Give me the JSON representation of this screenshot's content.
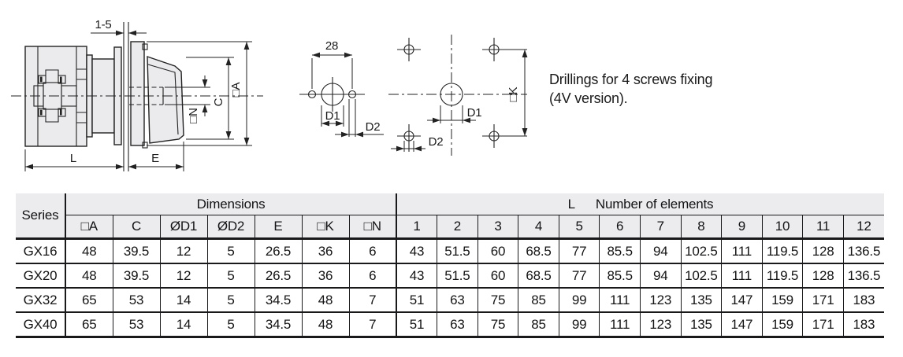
{
  "drawing": {
    "side_view": {
      "dim_clamp": "1-5",
      "dim_body_length": "L",
      "dim_front_length": "E",
      "dim_shaft_square": "□N",
      "dim_handle_height": "C",
      "dim_plate_square": "□A"
    },
    "two_hole_view": {
      "dim_spacing": "28",
      "dim_center_hole": "D1",
      "dim_fix_hole": "D2"
    },
    "four_hole_view": {
      "dim_center_hole": "D1",
      "dim_fix_hole": "D2",
      "dim_square": "□K"
    },
    "note": {
      "line1": "Drillings for 4 screws fixing",
      "line2": "(4V version)."
    }
  },
  "table": {
    "series_header": "Series",
    "dimensions_header": "Dimensions",
    "elements_header_l": "L",
    "elements_header_text": "Number of elements",
    "dim_columns": [
      "□A",
      "C",
      "ØD1",
      "ØD2",
      "E",
      "□K",
      "□N"
    ],
    "element_columns": [
      "1",
      "2",
      "3",
      "4",
      "5",
      "6",
      "7",
      "8",
      "9",
      "10",
      "11",
      "12"
    ],
    "rows": [
      {
        "series": "GX16",
        "dims": [
          "48",
          "39.5",
          "12",
          "5",
          "26.5",
          "36",
          "6"
        ],
        "lengths": [
          "43",
          "51.5",
          "60",
          "68.5",
          "77",
          "85.5",
          "94",
          "102.5",
          "111",
          "119.5",
          "128",
          "136.5"
        ]
      },
      {
        "series": "GX20",
        "dims": [
          "48",
          "39.5",
          "12",
          "5",
          "26.5",
          "36",
          "6"
        ],
        "lengths": [
          "43",
          "51.5",
          "60",
          "68.5",
          "77",
          "85.5",
          "94",
          "102.5",
          "111",
          "119.5",
          "128",
          "136.5"
        ]
      },
      {
        "series": "GX32",
        "dims": [
          "65",
          "53",
          "14",
          "5",
          "34.5",
          "48",
          "7"
        ],
        "lengths": [
          "51",
          "63",
          "75",
          "85",
          "99",
          "111",
          "123",
          "135",
          "147",
          "159",
          "171",
          "183"
        ]
      },
      {
        "series": "GX40",
        "dims": [
          "65",
          "53",
          "14",
          "5",
          "34.5",
          "48",
          "7"
        ],
        "lengths": [
          "51",
          "63",
          "75",
          "85",
          "99",
          "111",
          "123",
          "135",
          "147",
          "159",
          "171",
          "183"
        ]
      }
    ]
  },
  "colors": {
    "line": "#222222",
    "part_fill": "#ebebed",
    "table_header_bg": "#ececee",
    "table_border": "#19191b"
  }
}
